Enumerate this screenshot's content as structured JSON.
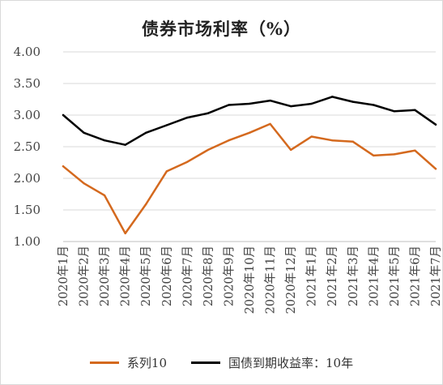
{
  "chart_data": {
    "type": "line",
    "title": "债券市场利率（%）",
    "categories": [
      "2020年1月",
      "2020年2月",
      "2020年3月",
      "2020年4月",
      "2020年5月",
      "2020年6月",
      "2020年7月",
      "2020年8月",
      "2020年9月",
      "2020年10月",
      "2020年11月",
      "2020年12月",
      "2021年1月",
      "2021年2月",
      "2021年3月",
      "2021年4月",
      "2021年5月",
      "2021年6月",
      "2021年7月"
    ],
    "series": [
      {
        "name": "系列10",
        "color": "#d4691e",
        "values": [
          2.19,
          1.92,
          1.73,
          1.13,
          1.59,
          2.11,
          2.26,
          2.45,
          2.6,
          2.72,
          2.86,
          2.45,
          2.66,
          2.6,
          2.58,
          2.36,
          2.38,
          2.44,
          2.15
        ]
      },
      {
        "name": "国债到期收益率：10年",
        "color": "#000000",
        "values": [
          3.0,
          2.72,
          2.6,
          2.53,
          2.72,
          2.84,
          2.96,
          3.03,
          3.16,
          3.18,
          3.23,
          3.14,
          3.18,
          3.29,
          3.21,
          3.16,
          3.06,
          3.08,
          2.85
        ]
      }
    ],
    "yticks": [
      "1.00",
      "1.50",
      "2.00",
      "2.50",
      "3.00",
      "3.50",
      "4.00"
    ],
    "ylim": [
      1.0,
      4.0
    ],
    "grid": true,
    "legend_position": "bottom"
  }
}
